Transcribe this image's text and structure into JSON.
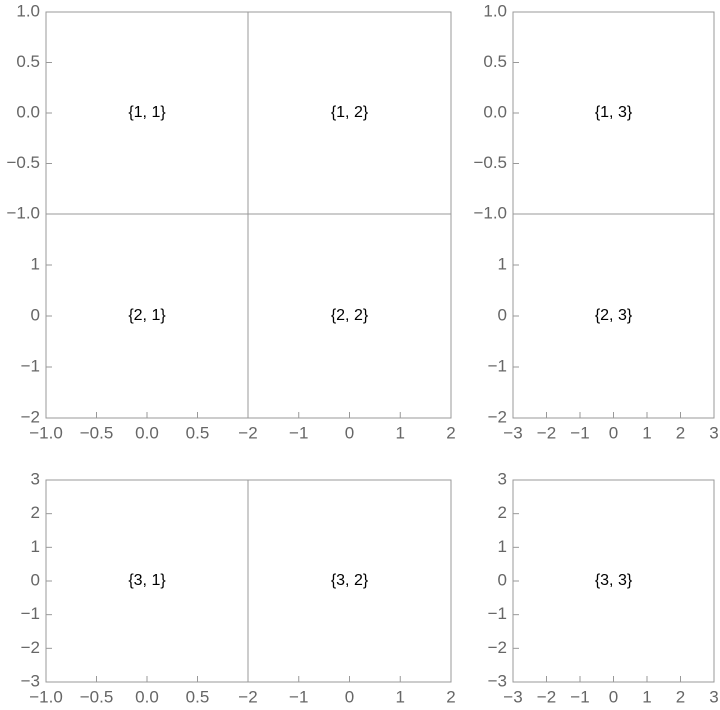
{
  "chart_data": [
    {
      "type": "frame",
      "annotation": "{1, 1}",
      "xlim": [
        -1,
        1
      ],
      "ylim": [
        -1,
        1
      ],
      "xticks": [],
      "yticks": [
        {
          "value": 1,
          "label": "1.0"
        },
        {
          "value": 0.5,
          "label": "0.5"
        },
        {
          "value": 0,
          "label": "0.0"
        },
        {
          "value": -0.5,
          "label": "−0.5"
        },
        {
          "value": -1,
          "label": "−1.0"
        }
      ]
    },
    {
      "type": "frame",
      "annotation": "{1, 2}",
      "xlim": [
        -2,
        2
      ],
      "ylim": [
        -1,
        1
      ],
      "xticks": [],
      "yticks": []
    },
    {
      "type": "frame",
      "annotation": "{1, 3}",
      "xlim": [
        -3,
        3
      ],
      "ylim": [
        -1,
        1
      ],
      "xticks": [],
      "yticks": [
        {
          "value": 1,
          "label": "1.0"
        },
        {
          "value": 0.5,
          "label": "0.5"
        },
        {
          "value": 0,
          "label": "0.0"
        },
        {
          "value": -0.5,
          "label": "−0.5"
        },
        {
          "value": -1,
          "label": "−1.0"
        }
      ]
    },
    {
      "type": "frame",
      "annotation": "{2, 1}",
      "xlim": [
        -1,
        1
      ],
      "ylim": [
        -2,
        2
      ],
      "xticks": [
        {
          "value": -1,
          "label": "−1.0"
        },
        {
          "value": -0.5,
          "label": "−0.5"
        },
        {
          "value": 0,
          "label": "0.0"
        },
        {
          "value": 0.5,
          "label": "0.5"
        }
      ],
      "yticks": [
        1,
        0,
        {
          "value": -1,
          "label": "−1"
        },
        {
          "value": -2,
          "label": "−2"
        }
      ]
    },
    {
      "type": "frame",
      "annotation": "{2, 2}",
      "xlim": [
        -2,
        2
      ],
      "ylim": [
        -2,
        2
      ],
      "xticks": [
        {
          "value": -2,
          "label": "−2"
        },
        {
          "value": -1,
          "label": "−1"
        },
        0,
        1,
        2
      ],
      "yticks": []
    },
    {
      "type": "frame",
      "annotation": "{2, 3}",
      "xlim": [
        -3,
        3
      ],
      "ylim": [
        -2,
        2
      ],
      "xticks": [
        {
          "value": -3,
          "label": "−3"
        },
        {
          "value": -2,
          "label": "−2"
        },
        {
          "value": -1,
          "label": "−1"
        },
        0,
        1,
        2,
        3
      ],
      "yticks": [
        1,
        0,
        {
          "value": -1,
          "label": "−1"
        },
        {
          "value": -2,
          "label": "−2"
        }
      ]
    },
    {
      "type": "frame",
      "annotation": "{3, 1}",
      "xlim": [
        -1,
        1
      ],
      "ylim": [
        -3,
        3
      ],
      "xticks": [
        {
          "value": -1,
          "label": "−1.0"
        },
        {
          "value": -0.5,
          "label": "−0.5"
        },
        {
          "value": 0,
          "label": "0.0"
        },
        {
          "value": 0.5,
          "label": "0.5"
        }
      ],
      "yticks": [
        3,
        2,
        1,
        0,
        {
          "value": -1,
          "label": "−1"
        },
        {
          "value": -2,
          "label": "−2"
        },
        {
          "value": -3,
          "label": "−3"
        }
      ]
    },
    {
      "type": "frame",
      "annotation": "{3, 2}",
      "xlim": [
        -2,
        2
      ],
      "ylim": [
        -3,
        3
      ],
      "xticks": [
        {
          "value": -2,
          "label": "−2"
        },
        {
          "value": -1,
          "label": "−1"
        },
        0,
        1,
        2
      ],
      "yticks": []
    },
    {
      "type": "frame",
      "annotation": "{3, 3}",
      "xlim": [
        -3,
        3
      ],
      "ylim": [
        -3,
        3
      ],
      "xticks": [
        {
          "value": -3,
          "label": "−3"
        },
        {
          "value": -2,
          "label": "−2"
        },
        {
          "value": -1,
          "label": "−1"
        },
        0,
        1,
        2,
        3
      ],
      "yticks": [
        3,
        2,
        1,
        0,
        {
          "value": -1,
          "label": "−1"
        },
        {
          "value": -2,
          "label": "−2"
        },
        {
          "value": -3,
          "label": "−3"
        }
      ]
    }
  ]
}
